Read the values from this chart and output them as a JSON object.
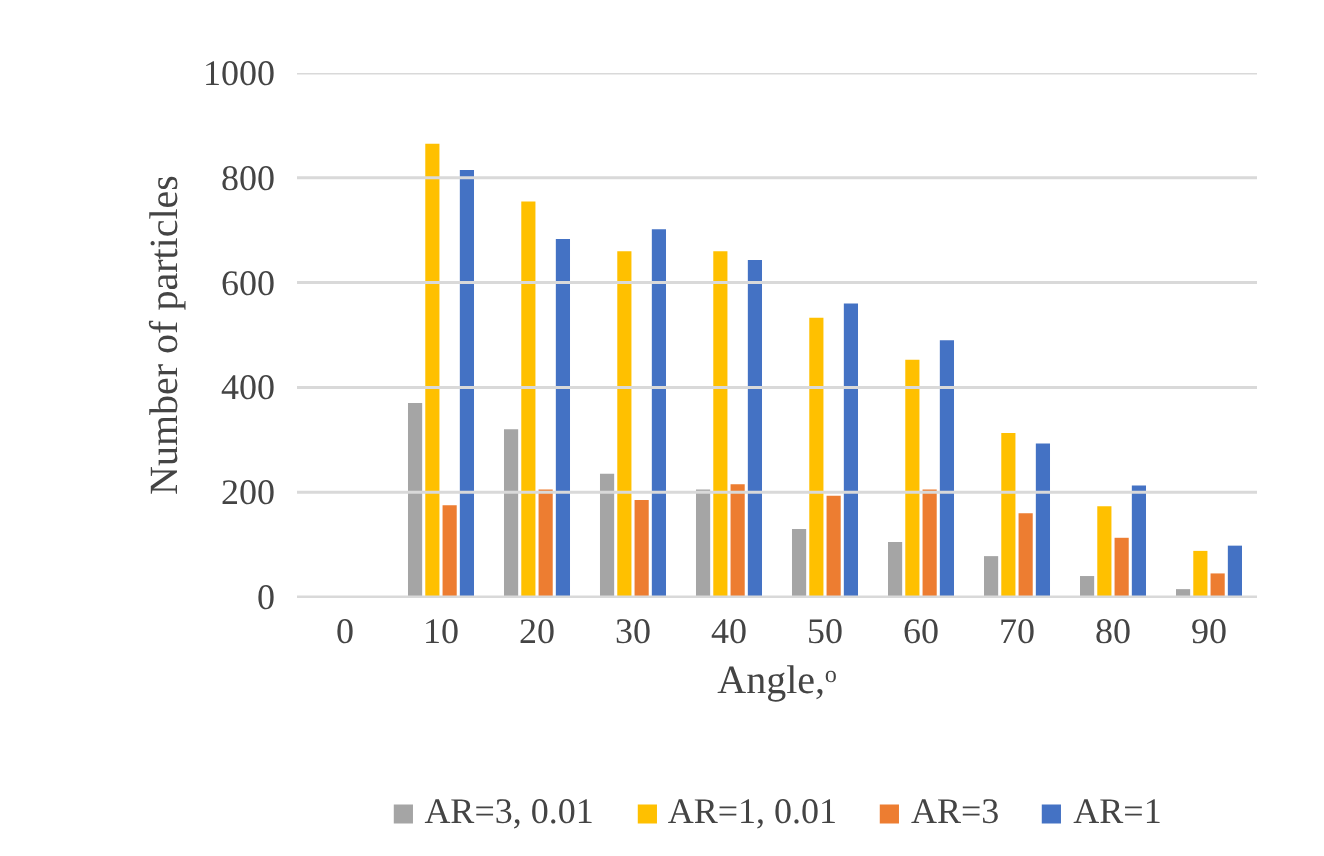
{
  "chart_data": {
    "type": "bar",
    "xlabel": "Angle,ᵒ",
    "ylabel": "Number of particles",
    "categories": [
      "0",
      "10",
      "20",
      "30",
      "40",
      "50",
      "60",
      "70",
      "80",
      "90"
    ],
    "series": [
      {
        "name": "AR=3, 0.01",
        "color": "#a5a5a5",
        "values": [
          0,
          370,
          320,
          235,
          205,
          130,
          105,
          78,
          40,
          15
        ]
      },
      {
        "name": "AR=1, 0.01",
        "color": "#ffc000",
        "values": [
          0,
          865,
          755,
          660,
          660,
          533,
          453,
          313,
          173,
          88
        ]
      },
      {
        "name": "AR=3",
        "color": "#ed7d31",
        "values": [
          0,
          175,
          205,
          185,
          215,
          193,
          205,
          160,
          113,
          45
        ]
      },
      {
        "name": "AR=1",
        "color": "#4472c4",
        "values": [
          0,
          815,
          683,
          702,
          643,
          560,
          490,
          293,
          213,
          98
        ]
      }
    ],
    "ylim": [
      0,
      1000
    ],
    "yticks": [
      0,
      200,
      400,
      600,
      800,
      1000
    ],
    "grid": "y",
    "legend": "bottom"
  }
}
